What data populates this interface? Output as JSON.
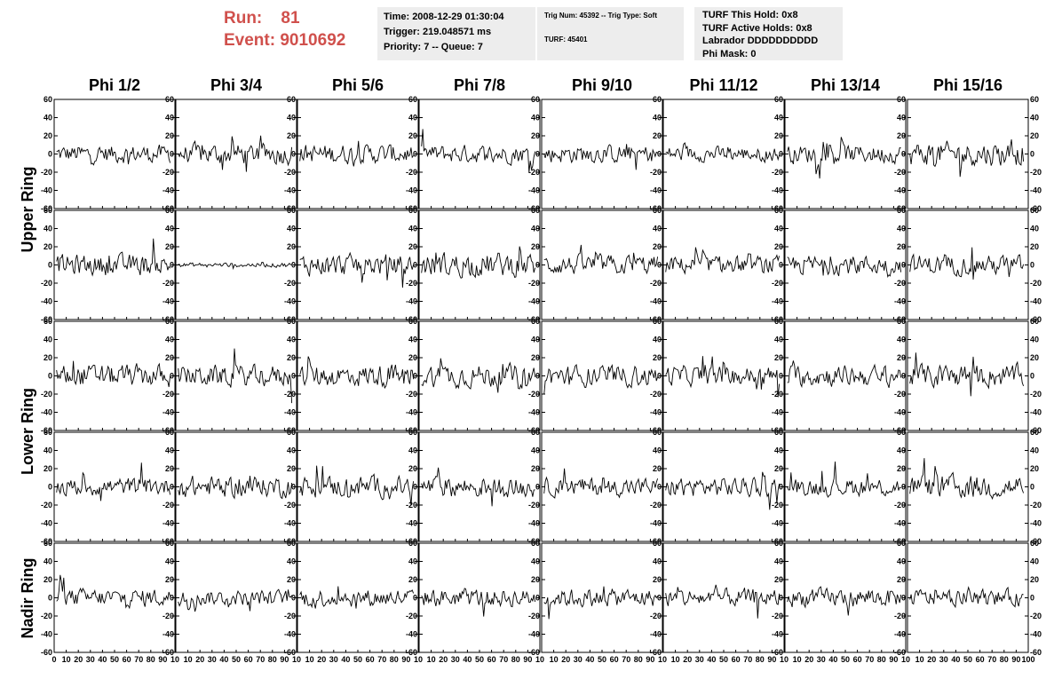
{
  "header": {
    "run_label": "Run:",
    "run_value": "81",
    "event_label": "Event:",
    "event_value": "9010692",
    "run_color": "#d0504c",
    "time_line": "Time: 2008-12-29 01:30:04",
    "trigger_line": "Trigger: 219.048571 ms",
    "priority_line": "Priority: 7 -- Queue: 7",
    "trig_line": "Trig Num: 45392 -- Trig Type: Soft",
    "turf_line": "TURF: 45401",
    "turf_hold_line": "TURF This Hold: 0x8",
    "turf_active_line": "TURF Active Holds: 0x8",
    "labrador_line": "Labrador DDDDDDDDDD",
    "phi_mask_line": "Phi Mask: 0",
    "info_box_color": "#ededed"
  },
  "chart_data": {
    "type": "line",
    "columns": [
      "Phi 1/2",
      "Phi 3/4",
      "Phi 5/6",
      "Phi 7/8",
      "Phi 9/10",
      "Phi 11/12",
      "Phi 13/14",
      "Phi 15/16"
    ],
    "row_groups": [
      {
        "label": "Upper Ring",
        "rows": 2
      },
      {
        "label": "Lower Ring",
        "rows": 2
      },
      {
        "label": "Nadir Ring",
        "rows": 1
      }
    ],
    "xlim": [
      0,
      100
    ],
    "ylim": [
      -60,
      60
    ],
    "x_ticks": [
      0,
      10,
      20,
      30,
      40,
      50,
      60,
      70,
      80,
      90,
      100
    ],
    "x_tick_labels_first": [
      "0",
      "10",
      "20",
      "30",
      "40",
      "50",
      "60",
      "70",
      "80",
      "90",
      "10"
    ],
    "x_tick_labels_middle": [
      "10",
      "20",
      "30",
      "40",
      "50",
      "60",
      "70",
      "80",
      "90",
      "10"
    ],
    "x_tick_labels_last": [
      "10",
      "20",
      "30",
      "40",
      "50",
      "60",
      "70",
      "80",
      "90",
      "100"
    ],
    "y_ticks": [
      -60,
      -40,
      -20,
      0,
      20,
      40,
      60
    ],
    "y_tick_labels": [
      "-60",
      "-40",
      "-20",
      "0",
      "20",
      "40",
      "60"
    ],
    "samples_per_trace": 96,
    "trace_color": "#000000",
    "amplitudes": [
      [
        12,
        14,
        13,
        12,
        12,
        10,
        12,
        16
      ],
      [
        14,
        3,
        14,
        16,
        13,
        12,
        13,
        13
      ],
      [
        15,
        14,
        15,
        15,
        14,
        13,
        14,
        15
      ],
      [
        12,
        14,
        14,
        14,
        12,
        13,
        12,
        16
      ],
      [
        12,
        10,
        12,
        12,
        12,
        12,
        12,
        11
      ]
    ]
  }
}
